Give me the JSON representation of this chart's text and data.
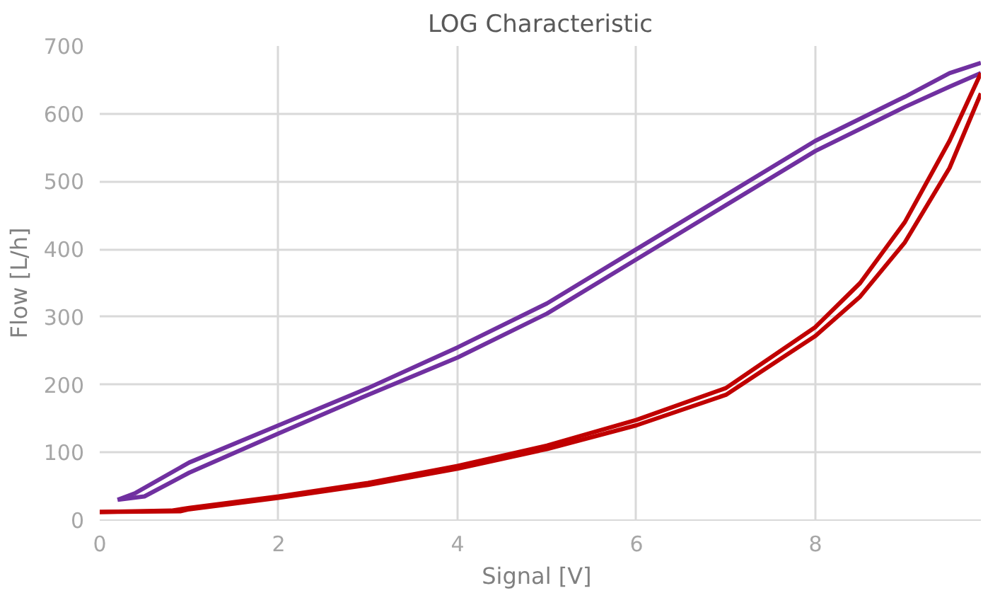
{
  "chart_data": {
    "type": "line",
    "title": "LOG Characteristic",
    "xlabel": "Signal  [V]",
    "ylabel": "Flow [L/h]",
    "xlim": [
      0,
      9.85
    ],
    "ylim": [
      0,
      700
    ],
    "xticks": [
      0,
      2,
      4,
      6,
      8
    ],
    "yticks": [
      0,
      100,
      200,
      300,
      400,
      500,
      600,
      700
    ],
    "grid": true,
    "line_style": "solid",
    "series": [
      {
        "color": "#7030a0",
        "x": [
          0.2,
          0.4,
          1,
          2,
          3,
          4,
          5,
          6,
          7,
          8,
          9,
          9.5,
          9.85
        ],
        "values": [
          30,
          40,
          85,
          140,
          195,
          255,
          320,
          400,
          480,
          560,
          625,
          660,
          675
        ]
      },
      {
        "color": "#7030a0",
        "x": [
          0.2,
          0.5,
          1,
          2,
          3,
          4,
          5,
          6,
          7,
          8,
          9,
          9.5,
          9.85
        ],
        "values": [
          30,
          35,
          70,
          128,
          185,
          240,
          305,
          385,
          465,
          545,
          610,
          640,
          660
        ]
      },
      {
        "color": "#c00000",
        "x": [
          0,
          0.8,
          1,
          2,
          3,
          4,
          5,
          6,
          7,
          8,
          8.5,
          9,
          9.5,
          9.85
        ],
        "values": [
          12,
          14,
          18,
          35,
          55,
          80,
          110,
          148,
          195,
          285,
          350,
          440,
          560,
          660
        ]
      },
      {
        "color": "#c00000",
        "x": [
          0,
          0.9,
          1,
          2,
          3,
          4,
          5,
          6,
          7,
          8,
          8.5,
          9,
          9.5,
          9.85
        ],
        "values": [
          12,
          13,
          16,
          33,
          52,
          76,
          105,
          140,
          185,
          272,
          330,
          410,
          520,
          630
        ]
      }
    ]
  }
}
